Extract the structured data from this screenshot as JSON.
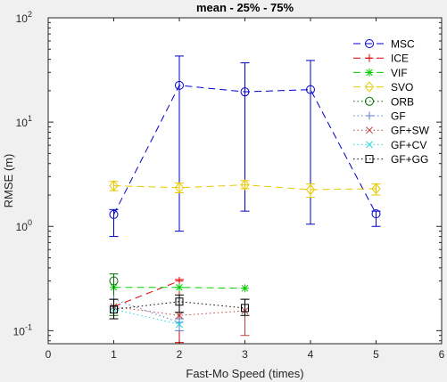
{
  "chart_data": {
    "type": "line",
    "title": "mean - 25% - 75%",
    "xlabel": "Fast-Mo Speed (times)",
    "ylabel": "RMSE (m)",
    "xlim": [
      0,
      6
    ],
    "ylim": [
      0.075,
      100
    ],
    "yscale": "log",
    "x_ticks": [
      0,
      1,
      2,
      3,
      4,
      5,
      6
    ],
    "x_tick_labels": [
      "0",
      "1",
      "2",
      "3",
      "4",
      "5",
      "6"
    ],
    "y_tick_labels": [
      {
        "base": "10",
        "exp": "-1",
        "value": 0.1
      },
      {
        "base": "10",
        "exp": "0",
        "value": 1
      },
      {
        "base": "10",
        "exp": "1",
        "value": 10
      },
      {
        "base": "10",
        "exp": "2",
        "value": 100
      }
    ],
    "grid": false,
    "legend_position": "top-right",
    "series": [
      {
        "name": "MSC",
        "color": "#0000cc",
        "marker": "circle",
        "dash": "8,5",
        "points": [
          {
            "x": 1,
            "y": 1.3,
            "lo": 0.8,
            "hi": 1.45
          },
          {
            "x": 2,
            "y": 22.5,
            "lo": 0.9,
            "hi": 43
          },
          {
            "x": 3,
            "y": 19.5,
            "lo": 1.4,
            "hi": 37
          },
          {
            "x": 4,
            "y": 20.5,
            "lo": 1.05,
            "hi": 39
          },
          {
            "x": 5,
            "y": 1.32,
            "lo": 1.0,
            "hi": 1.4
          }
        ]
      },
      {
        "name": "ICE",
        "color": "#e00000",
        "marker": "plus",
        "dash": "8,5",
        "points": [
          {
            "x": 1,
            "y": 0.17,
            "lo": 0.13,
            "hi": 0.2
          },
          {
            "x": 2,
            "y": 0.3,
            "lo": 0.077,
            "hi": 0.31
          }
        ]
      },
      {
        "name": "VIF",
        "color": "#00d000",
        "marker": "asterisk",
        "dash": "8,5",
        "points": [
          {
            "x": 1,
            "y": 0.26
          },
          {
            "x": 2,
            "y": 0.26
          },
          {
            "x": 3,
            "y": 0.255
          }
        ]
      },
      {
        "name": "SVO",
        "color": "#e8c800",
        "marker": "diamond",
        "dash": "8,5",
        "points": [
          {
            "x": 1,
            "y": 2.45,
            "lo": 2.2,
            "hi": 2.7
          },
          {
            "x": 2,
            "y": 2.35,
            "lo": 2.1,
            "hi": 2.6
          },
          {
            "x": 3,
            "y": 2.5,
            "lo": 2.3,
            "hi": 2.75
          },
          {
            "x": 4,
            "y": 2.25,
            "lo": 1.9,
            "hi": 2.55
          },
          {
            "x": 5,
            "y": 2.3,
            "lo": 2.0,
            "hi": 2.55
          }
        ]
      },
      {
        "name": "ORB",
        "color": "#007000",
        "marker": "circle",
        "dash": "1.5,3",
        "points": [
          {
            "x": 1,
            "y": 0.3,
            "lo": 0.14,
            "hi": 0.35
          }
        ]
      },
      {
        "name": "GF",
        "color": "#5a7fd0",
        "marker": "plus",
        "dash": "1.5,3",
        "points": [
          {
            "x": 1,
            "y": 0.2
          },
          {
            "x": 2,
            "y": 0.12,
            "lo": 0.1,
            "hi": 0.13
          }
        ]
      },
      {
        "name": "GF+SW",
        "color": "#b84040",
        "marker": "x",
        "dash": "1.5,3",
        "points": [
          {
            "x": 1,
            "y": 0.17
          },
          {
            "x": 2,
            "y": 0.14
          },
          {
            "x": 3,
            "y": 0.155,
            "lo": 0.09,
            "hi": 0.2
          }
        ]
      },
      {
        "name": "GF+CV",
        "color": "#20d8d8",
        "marker": "x",
        "dash": "1.5,3",
        "points": [
          {
            "x": 1,
            "y": 0.16
          },
          {
            "x": 2,
            "y": 0.115
          }
        ]
      },
      {
        "name": "GF+GG",
        "color": "#000000",
        "marker": "square",
        "dash": "1.5,3",
        "points": [
          {
            "x": 1,
            "y": 0.16,
            "lo": 0.13,
            "hi": 0.2
          },
          {
            "x": 2,
            "y": 0.19,
            "lo": 0.15,
            "hi": 0.22
          },
          {
            "x": 3,
            "y": 0.165,
            "lo": 0.14,
            "hi": 0.2
          }
        ]
      }
    ]
  }
}
